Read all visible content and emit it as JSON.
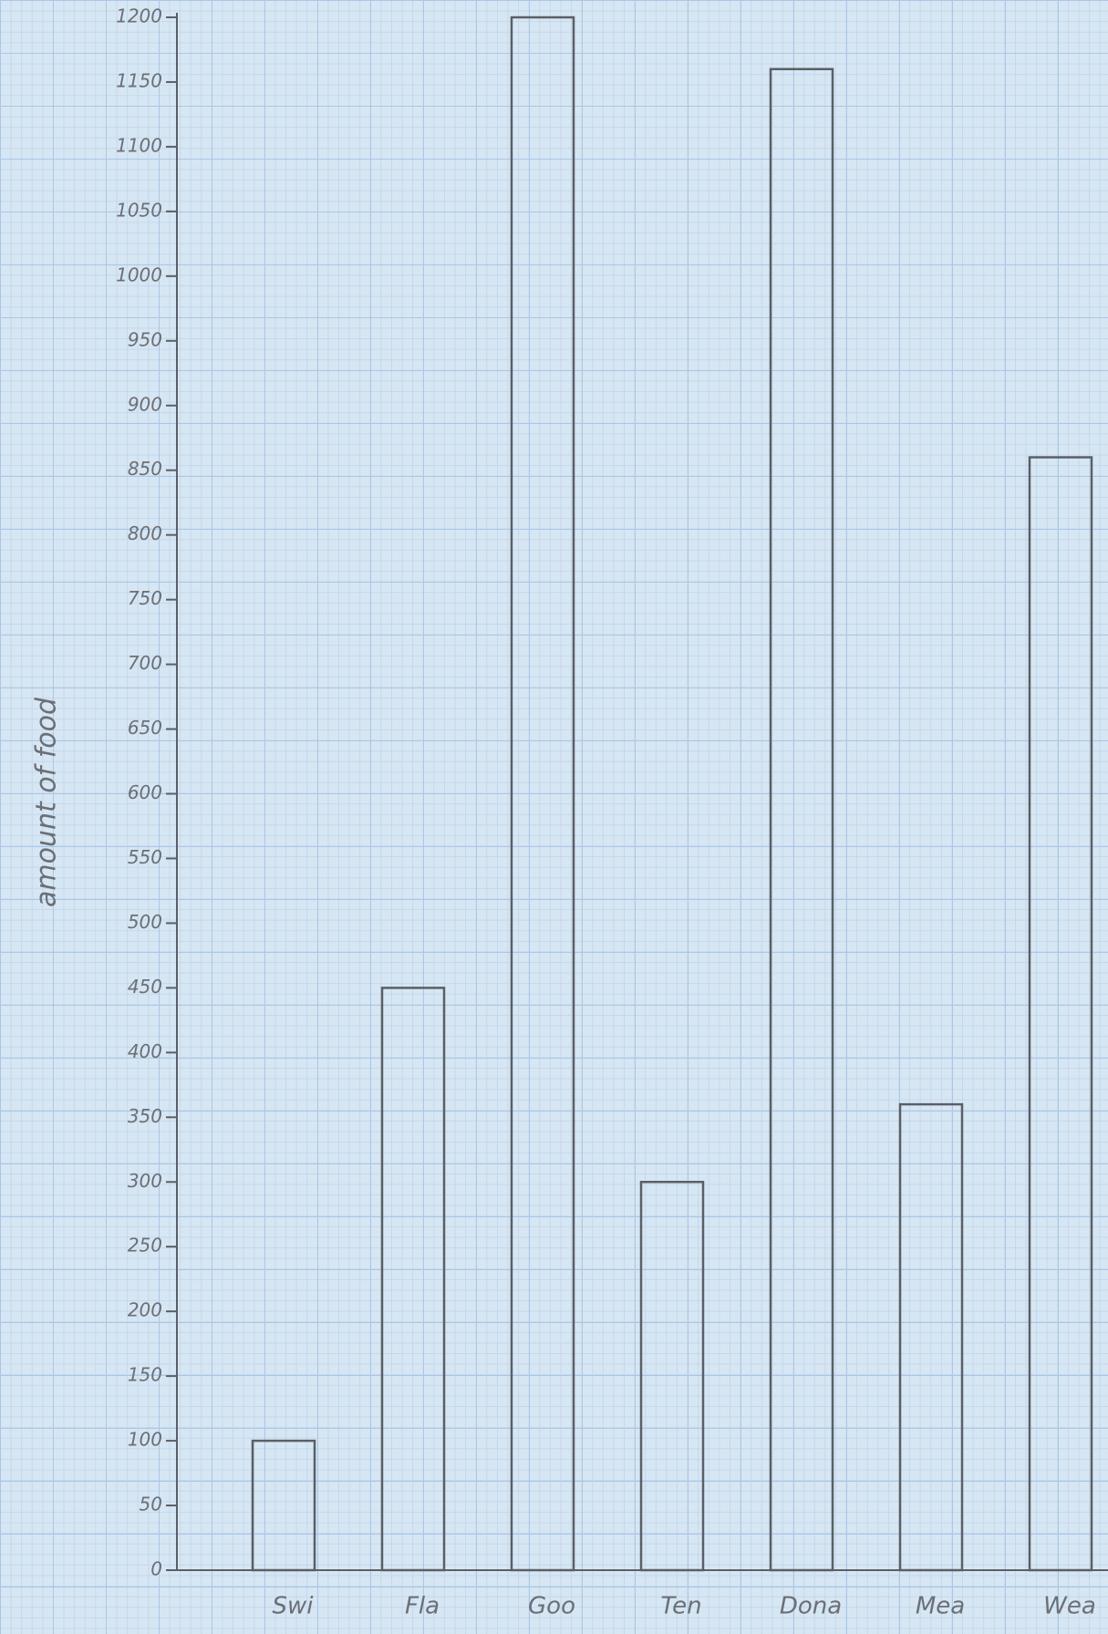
{
  "chart_data": {
    "type": "bar",
    "y_label": "amount of food",
    "categories": [
      "Swi",
      "Fla",
      "Goo",
      "Ten",
      "Dona",
      "Mea",
      "Wea"
    ],
    "values": [
      100,
      450,
      1200,
      300,
      1160,
      360,
      860
    ],
    "color": "#5a5f66",
    "ylim": [
      0,
      1200
    ],
    "yticks": [
      0,
      50,
      100,
      150,
      200,
      250,
      300,
      350,
      400,
      450,
      500,
      550,
      600,
      650,
      700,
      750,
      800,
      850,
      900,
      950,
      1000,
      1050,
      1100,
      1150,
      1200
    ],
    "grid": false
  }
}
